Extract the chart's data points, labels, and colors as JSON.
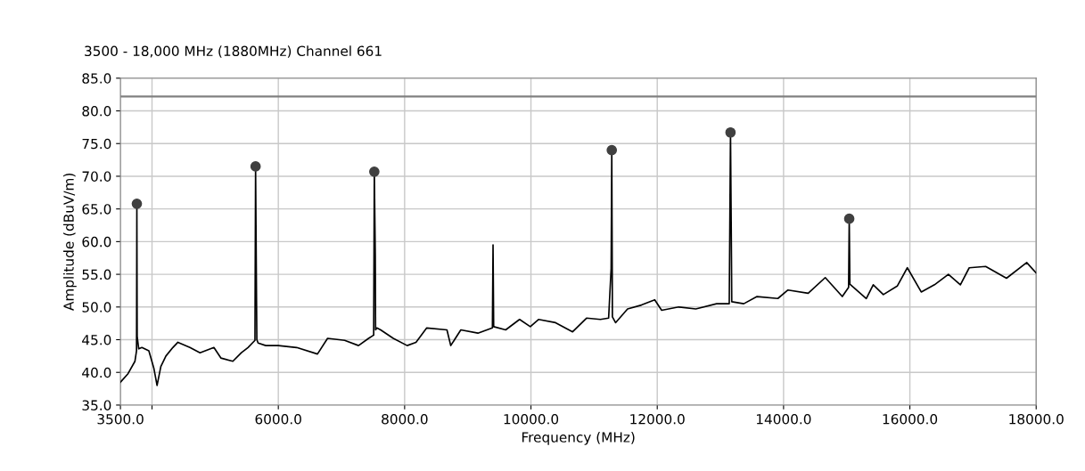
{
  "chart_data": {
    "type": "line",
    "title": "3500 - 18,000 MHz (1880MHz) Channel 661",
    "xlabel": "Frequency (MHz)",
    "ylabel": "Amplitude (dBuV/m)",
    "xlim": [
      3500,
      18000
    ],
    "ylim": [
      35,
      85
    ],
    "xticks": [
      {
        "value": 3500,
        "label": "3500.0"
      },
      {
        "value": 4000,
        "label": null
      },
      {
        "value": 6000,
        "label": "6000.0"
      },
      {
        "value": 8000,
        "label": "8000.0"
      },
      {
        "value": 10000,
        "label": "10000.0"
      },
      {
        "value": 12000,
        "label": "12000.0"
      },
      {
        "value": 14000,
        "label": "14000.0"
      },
      {
        "value": 16000,
        "label": "16000.0"
      },
      {
        "value": 18000,
        "label": "18000.0"
      }
    ],
    "yticks": [
      {
        "value": 35,
        "label": "35.0"
      },
      {
        "value": 40,
        "label": "40.0"
      },
      {
        "value": 45,
        "label": "45.0"
      },
      {
        "value": 50,
        "label": "50.0"
      },
      {
        "value": 55,
        "label": "55.0"
      },
      {
        "value": 60,
        "label": "60.0"
      },
      {
        "value": 65,
        "label": "65.0"
      },
      {
        "value": 70,
        "label": "70.0"
      },
      {
        "value": 75,
        "label": "75.0"
      },
      {
        "value": 80,
        "label": "80.0"
      },
      {
        "value": 85,
        "label": "85.0"
      }
    ],
    "grid": true,
    "ref_lines": [
      {
        "axis": "y",
        "value": 82.2,
        "color": "#808080"
      }
    ],
    "series": [
      {
        "color": "#000000",
        "x": [
          3500,
          3620,
          3730,
          3755,
          3760,
          3765,
          3790,
          3840,
          3950,
          4030,
          4080,
          4140,
          4220,
          4330,
          4410,
          4600,
          4760,
          4980,
          5090,
          5280,
          5415,
          5520,
          5630,
          5640,
          5655,
          5660,
          5680,
          5800,
          6000,
          6290,
          6620,
          6780,
          7050,
          7270,
          7430,
          7510,
          7520,
          7535,
          7540,
          7560,
          7620,
          7820,
          8040,
          8180,
          8350,
          8670,
          8730,
          8890,
          9160,
          9390,
          9400,
          9410,
          9600,
          9820,
          9990,
          10120,
          10390,
          10660,
          10880,
          11100,
          11230,
          11270,
          11280,
          11290,
          11340,
          11530,
          11750,
          11960,
          12070,
          12340,
          12610,
          12940,
          13140,
          13160,
          13175,
          13180,
          13370,
          13580,
          13910,
          14070,
          14390,
          14660,
          14930,
          15030,
          15040,
          15050,
          15310,
          15420,
          15580,
          15800,
          15960,
          16180,
          16390,
          16610,
          16800,
          16940,
          17200,
          17530,
          17850,
          18000
        ],
        "values": [
          38.5,
          39.8,
          41.7,
          43.3,
          65.8,
          45.5,
          43.6,
          43.8,
          43.3,
          40.6,
          38.0,
          40.9,
          42.5,
          43.8,
          44.6,
          43.8,
          43.0,
          43.8,
          42.2,
          41.7,
          43.0,
          43.8,
          44.9,
          71.5,
          51.0,
          45.0,
          44.5,
          44.1,
          44.1,
          43.8,
          42.8,
          45.2,
          44.9,
          44.1,
          45.2,
          45.7,
          70.7,
          58.0,
          46.5,
          46.8,
          46.5,
          45.2,
          44.1,
          44.6,
          46.8,
          46.5,
          44.1,
          46.5,
          46.0,
          46.8,
          59.5,
          47.0,
          46.5,
          48.1,
          47.0,
          48.1,
          47.6,
          46.2,
          48.3,
          48.1,
          48.3,
          55.9,
          74.0,
          48.5,
          47.6,
          49.7,
          50.3,
          51.1,
          49.5,
          50.0,
          49.7,
          50.5,
          50.5,
          76.7,
          57.8,
          50.8,
          50.5,
          51.6,
          51.3,
          52.6,
          52.1,
          54.5,
          51.6,
          53.0,
          63.5,
          53.5,
          51.3,
          53.4,
          51.9,
          53.2,
          56.0,
          52.3,
          53.4,
          55.0,
          53.4,
          56.0,
          56.2,
          54.4,
          56.8,
          55.2
        ]
      },
      {
        "type": "scatter",
        "color": "#404040",
        "marker": "circle",
        "x": [
          3760,
          5640,
          7520,
          11280,
          13160,
          15040
        ],
        "values": [
          65.8,
          71.5,
          70.7,
          74.0,
          76.7,
          63.5
        ]
      }
    ]
  }
}
